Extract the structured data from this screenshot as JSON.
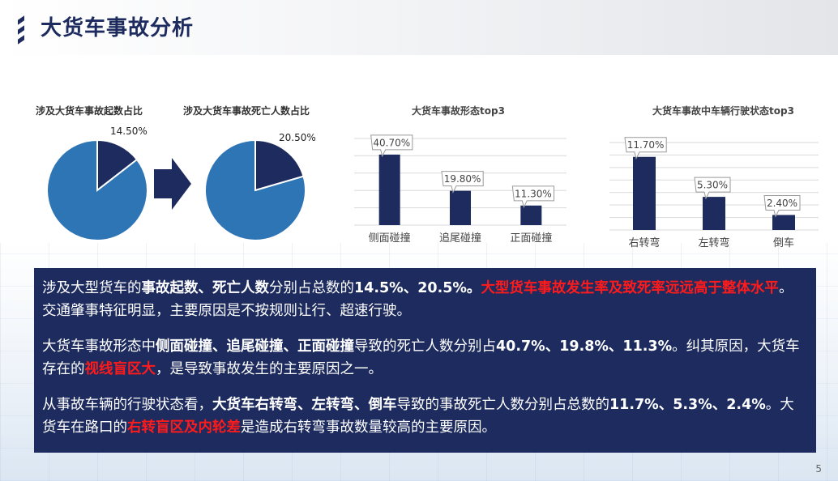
{
  "page": {
    "title": "大货车事故分析",
    "page_number": "5"
  },
  "colors": {
    "navy": "#1d2b5e",
    "pie_blue": "#2e75b6",
    "highlight_red": "#ff1b1b"
  },
  "chart_data": [
    {
      "type": "pie",
      "title": "涉及大货车事故起数占比",
      "slices": [
        {
          "value": 14.5,
          "label": "14.50%"
        },
        {
          "value": 85.5
        }
      ]
    },
    {
      "type": "pie",
      "title": "涉及大货车事故死亡人数占比",
      "slices": [
        {
          "value": 20.5,
          "label": "20.50%"
        },
        {
          "value": 79.5
        }
      ]
    },
    {
      "type": "bar",
      "title": "大货车事故形态top3",
      "categories": [
        "侧面碰撞",
        "追尾碰撞",
        "正面碰撞"
      ],
      "values": [
        40.7,
        19.8,
        11.3
      ],
      "labels": [
        "40.70%",
        "19.80%",
        "11.30%"
      ],
      "grid": true
    },
    {
      "type": "bar",
      "title": "大货车事故中车辆行驶状态top3",
      "categories": [
        "右转弯",
        "左转弯",
        "倒车"
      ],
      "values": [
        11.7,
        5.3,
        2.4
      ],
      "labels": [
        "11.70%",
        "5.30%",
        "2.40%"
      ],
      "grid": true
    }
  ],
  "summary": {
    "p1": {
      "t1": "涉及大型货车的",
      "b1": "事故起数、死亡人数",
      "t2": "分别占总数的",
      "b2": "14.5%、20.5%。",
      "r1": "大型货车事故发生率及致死率远远高于整体水平",
      "t3": "。交通肇事特征明显，主要原因是不按规则让行、超速行驶。"
    },
    "p2": {
      "t1": "大货车事故形态中",
      "b1": "侧面碰撞、追尾碰撞、正面碰撞",
      "t2": "导致的死亡人数分别占",
      "b2": "40.7%、19.8%、11.3%",
      "t3": "。纠其原因，大货车存在的",
      "r1": "视线盲区大",
      "t4": "，是导致事故发生的主要原因之一。"
    },
    "p3": {
      "t1": "从事故车辆的行驶状态看，",
      "b1": "大货车右转弯、左转弯、倒车",
      "t2": "导致的事故死亡人数分别占总数的",
      "b2": "11.7%、5.3%、2.4%",
      "t3": "。大货车在路口的",
      "r1": "右转盲区及内轮差",
      "t4": "是造成右转弯事故数量较高的主要原因。"
    }
  }
}
